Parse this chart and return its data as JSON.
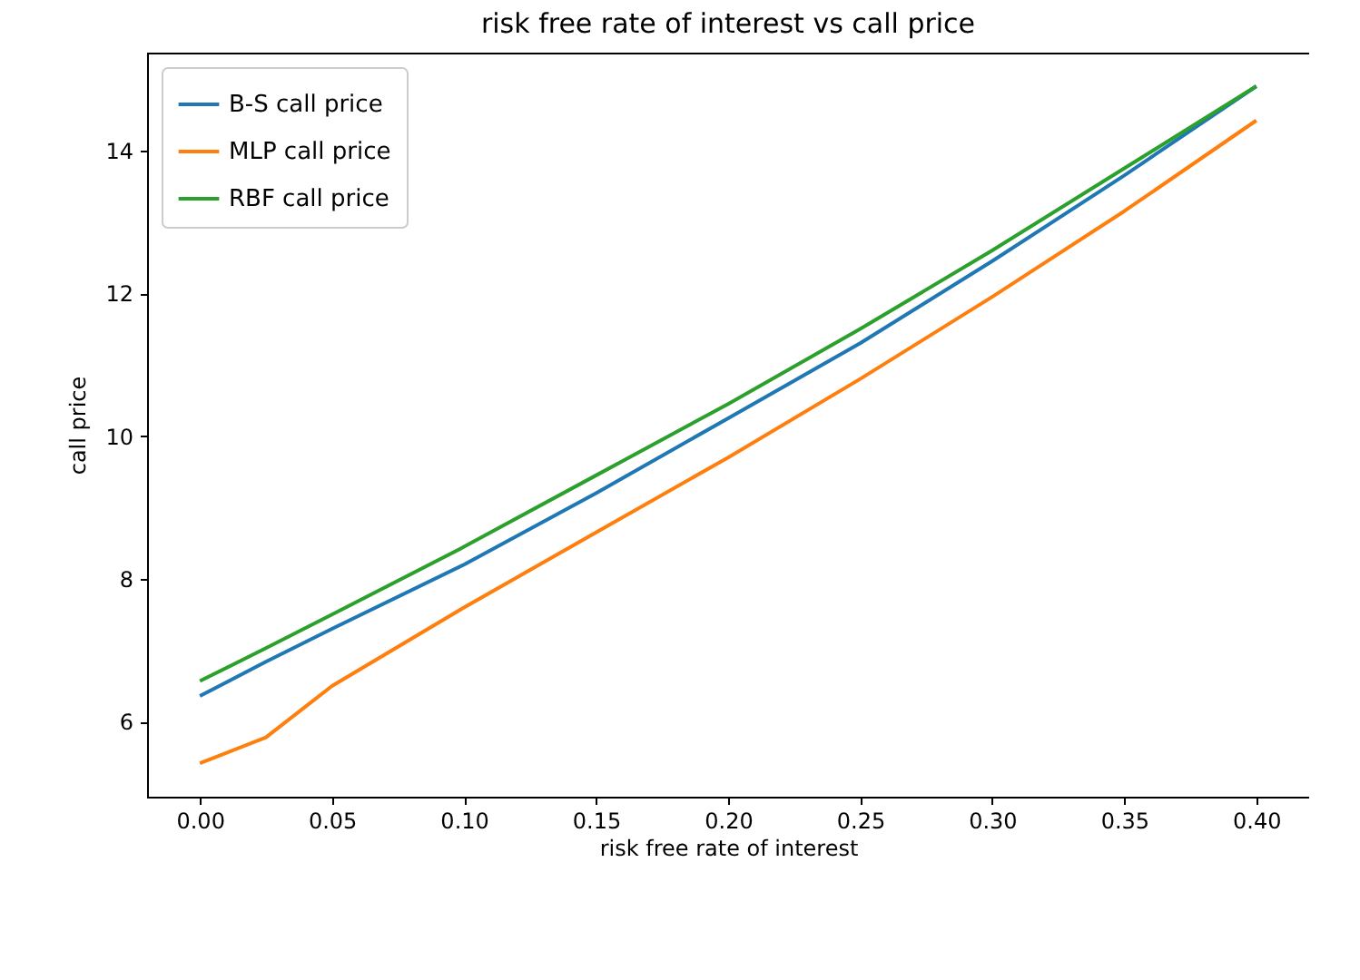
{
  "chart_data": {
    "type": "line",
    "title": "risk free rate of interest vs call price",
    "xlabel": "risk free rate of interest",
    "ylabel": "call price",
    "x": [
      0,
      0.025,
      0.05,
      0.1,
      0.15,
      0.2,
      0.25,
      0.3,
      0.35,
      0.4
    ],
    "series": [
      {
        "name": "B-S call price",
        "color": "#1f77b4",
        "values": [
          6.36,
          6.84,
          7.3,
          8.2,
          9.2,
          10.25,
          11.3,
          12.45,
          13.65,
          14.9
        ]
      },
      {
        "name": "MLP call price",
        "color": "#ff7f0e",
        "values": [
          5.42,
          5.78,
          6.5,
          7.6,
          8.65,
          9.7,
          10.8,
          11.95,
          13.15,
          14.42
        ]
      },
      {
        "name": "RBF call price",
        "color": "#2ca02c",
        "values": [
          6.57,
          7.03,
          7.5,
          8.45,
          9.45,
          10.45,
          11.5,
          12.6,
          13.75,
          14.9
        ]
      }
    ],
    "xlim": [
      -0.02,
      0.42
    ],
    "ylim": [
      4.95,
      15.37
    ],
    "xticks": [
      {
        "value": 0,
        "label": "0.00"
      },
      0.05,
      {
        "value": 0.1,
        "label": "0.10"
      },
      0.15,
      {
        "value": 0.2,
        "label": "0.20"
      },
      0.25,
      {
        "value": 0.3,
        "label": "0.30"
      },
      0.35,
      {
        "value": 0.4,
        "label": "0.40"
      }
    ],
    "yticks": [
      6,
      8,
      10,
      12,
      14
    ],
    "legend": "top left",
    "grid": false,
    "line_style": "solid",
    "marker": "none"
  }
}
